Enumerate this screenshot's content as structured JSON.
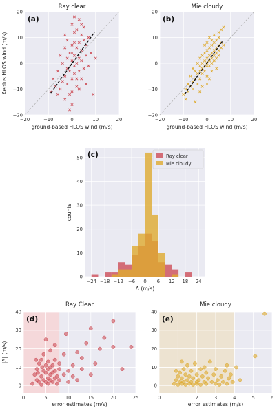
{
  "colors": {
    "ray": "#cd4e57",
    "mie": "#deaa2e",
    "panel_bg": "#eaeaf2",
    "grid": "#ffffff",
    "shade_ray": "#f5d8da",
    "shade_mie": "#ede3d1"
  },
  "chart_data": [
    {
      "id": "a",
      "type": "scatter",
      "panel_label": "(a)",
      "title": "Ray clear",
      "xlabel": "ground-based HLOS wind (m/s)",
      "ylabel": "Aeolus HLOS wind (m/s)",
      "xlim": [
        -20,
        20
      ],
      "ylim": [
        -20,
        20
      ],
      "xticks": [
        "−20",
        "−10",
        "0",
        "10",
        "20"
      ],
      "yticks": [
        "20",
        "10",
        "0",
        "−10",
        "−20"
      ],
      "marker": "x",
      "color": "#cd4e57",
      "grid": true,
      "one_to_one_line": {
        "from": [
          -20,
          -20
        ],
        "to": [
          20,
          20
        ]
      },
      "fit_line": {
        "from": [
          -9,
          -11.5
        ],
        "to": [
          9.5,
          12
        ]
      },
      "points": [
        [
          -9,
          -11
        ],
        [
          -8,
          -6
        ],
        [
          -7,
          -9
        ],
        [
          -6,
          -3
        ],
        [
          -6,
          -12
        ],
        [
          -5,
          -10
        ],
        [
          -5,
          3
        ],
        [
          -4,
          -7
        ],
        [
          -4,
          0
        ],
        [
          -3,
          -5
        ],
        [
          -3,
          -14
        ],
        [
          -3,
          6
        ],
        [
          -2,
          -2
        ],
        [
          -2,
          -8
        ],
        [
          -2,
          9
        ],
        [
          -1,
          -3
        ],
        [
          -1,
          4
        ],
        [
          -1,
          -12
        ],
        [
          0,
          -6
        ],
        [
          0,
          1
        ],
        [
          0,
          7
        ],
        [
          0,
          -16
        ],
        [
          0,
          15
        ],
        [
          1,
          -4
        ],
        [
          1,
          3
        ],
        [
          1,
          12
        ],
        [
          1,
          -1
        ],
        [
          2,
          -9
        ],
        [
          2,
          6
        ],
        [
          2,
          13
        ],
        [
          2,
          0
        ],
        [
          3,
          2
        ],
        [
          3,
          -3
        ],
        [
          3,
          8
        ],
        [
          3,
          17
        ],
        [
          4,
          5
        ],
        [
          4,
          -6
        ],
        [
          4,
          11
        ],
        [
          4,
          1
        ],
        [
          5,
          9
        ],
        [
          5,
          -2
        ],
        [
          5,
          14
        ],
        [
          6,
          3
        ],
        [
          6,
          -8
        ],
        [
          6,
          7
        ],
        [
          7,
          10
        ],
        [
          7,
          -1
        ],
        [
          8,
          4
        ],
        [
          9,
          -12
        ],
        [
          10,
          2
        ],
        [
          -1,
          -18
        ],
        [
          1,
          18
        ],
        [
          0,
          -11
        ],
        [
          2,
          -6
        ],
        [
          -2,
          2
        ],
        [
          3,
          -10
        ],
        [
          4,
          15
        ],
        [
          1,
          8
        ],
        [
          -3,
          11
        ],
        [
          0,
          4
        ]
      ]
    },
    {
      "id": "b",
      "type": "scatter",
      "panel_label": "(b)",
      "title": "Mie cloudy",
      "xlabel": "ground-based HLOS wind (m/s)",
      "xlim": [
        -20,
        20
      ],
      "ylim": [
        -20,
        20
      ],
      "xticks": [
        "−20",
        "−10",
        "0",
        "10",
        "20"
      ],
      "yticks": [
        "20",
        "10",
        "0",
        "−10",
        "−20"
      ],
      "marker": "x",
      "color": "#deaa2e",
      "grid": true,
      "one_to_one_line": {
        "from": [
          -20,
          -20
        ],
        "to": [
          20,
          20
        ]
      },
      "fit_line": {
        "from": [
          -9.5,
          -12
        ],
        "to": [
          6.5,
          8.5
        ]
      },
      "points": [
        [
          -10,
          -12
        ],
        [
          -9,
          -10
        ],
        [
          -9,
          -14
        ],
        [
          -8,
          -8
        ],
        [
          -8,
          -11
        ],
        [
          -7,
          -9
        ],
        [
          -7,
          -5
        ],
        [
          -6,
          -7
        ],
        [
          -6,
          -2
        ],
        [
          -6,
          -10
        ],
        [
          -5,
          -6
        ],
        [
          -5,
          -3
        ],
        [
          -5,
          -15
        ],
        [
          -4,
          -4
        ],
        [
          -4,
          0
        ],
        [
          -4,
          -8
        ],
        [
          -3,
          -3
        ],
        [
          -3,
          -1
        ],
        [
          -3,
          -6
        ],
        [
          -3,
          2
        ],
        [
          -2,
          -2
        ],
        [
          -2,
          0
        ],
        [
          -2,
          -4
        ],
        [
          -2,
          3
        ],
        [
          -1,
          -1
        ],
        [
          -1,
          1
        ],
        [
          -1,
          -3
        ],
        [
          -1,
          4
        ],
        [
          0,
          0
        ],
        [
          0,
          2
        ],
        [
          0,
          -1
        ],
        [
          0,
          5
        ],
        [
          0,
          -5
        ],
        [
          1,
          1
        ],
        [
          1,
          3
        ],
        [
          1,
          -1
        ],
        [
          1,
          6
        ],
        [
          2,
          2
        ],
        [
          2,
          4
        ],
        [
          2,
          0
        ],
        [
          2,
          7
        ],
        [
          3,
          3
        ],
        [
          3,
          5
        ],
        [
          3,
          1
        ],
        [
          3,
          8
        ],
        [
          4,
          4
        ],
        [
          4,
          6
        ],
        [
          4,
          2
        ],
        [
          4,
          9
        ],
        [
          5,
          5
        ],
        [
          5,
          7
        ],
        [
          5,
          3
        ],
        [
          5,
          10
        ],
        [
          6,
          6
        ],
        [
          6,
          8
        ],
        [
          6,
          13
        ],
        [
          7,
          7
        ],
        [
          7,
          14
        ],
        [
          0,
          -8
        ],
        [
          2,
          -3
        ],
        [
          -1,
          7
        ],
        [
          1,
          10
        ],
        [
          3,
          11
        ],
        [
          -2,
          -9
        ],
        [
          4,
          -2
        ],
        [
          -3,
          -11
        ],
        [
          2,
          9
        ],
        [
          5,
          12
        ],
        [
          0,
          8
        ],
        [
          1,
          -6
        ]
      ]
    },
    {
      "id": "c",
      "type": "bar",
      "subtype": "histogram",
      "panel_label": "(c)",
      "xlabel": "Δ (m/s)",
      "ylabel": "counts",
      "xlim": [
        -27,
        27
      ],
      "ylim": [
        0,
        54
      ],
      "xticks": [
        "−24",
        "−18",
        "−12",
        "−6",
        "0",
        "6",
        "12",
        "18",
        "24"
      ],
      "yticks": [
        "0",
        "10",
        "20",
        "30",
        "40",
        "50"
      ],
      "bin_edges": [
        -24,
        -21,
        -18,
        -15,
        -12,
        -9,
        -6,
        -3,
        0,
        3,
        6,
        9,
        12,
        15,
        18,
        21,
        24
      ],
      "legend_position": "top-right",
      "series": [
        {
          "name": "Ray clear",
          "color": "#cd4e57",
          "values": [
            1,
            0,
            2,
            2,
            6,
            5,
            9,
            13,
            18,
            15,
            6,
            5,
            3,
            0,
            2,
            0
          ]
        },
        {
          "name": "Mie cloudy",
          "color": "#deaa2e",
          "values": [
            0,
            0,
            0,
            1,
            3,
            3,
            13,
            18,
            52,
            26,
            10,
            0,
            1,
            0,
            0,
            0
          ]
        }
      ]
    },
    {
      "id": "d",
      "type": "scatter",
      "panel_label": "(d)",
      "title": "Ray Clear",
      "xlabel": "error estimates (m/s)",
      "ylabel": "|Δ| (m/s)",
      "xlim": [
        0,
        25
      ],
      "ylim": [
        -4,
        40
      ],
      "shade_x": [
        0,
        8
      ],
      "xticks": [
        "0",
        "5",
        "10",
        "15",
        "20",
        "25"
      ],
      "yticks": [
        "40",
        "30",
        "20",
        "10",
        "0"
      ],
      "marker": "o",
      "color": "#cd4e57",
      "grid": true,
      "points": [
        [
          2,
          1
        ],
        [
          2.5,
          6
        ],
        [
          3,
          3
        ],
        [
          3,
          9
        ],
        [
          3.5,
          12
        ],
        [
          3.5,
          2
        ],
        [
          4,
          5
        ],
        [
          4,
          14
        ],
        [
          4,
          0.5
        ],
        [
          4.5,
          8
        ],
        [
          4.5,
          3
        ],
        [
          4.5,
          17
        ],
        [
          5,
          2
        ],
        [
          5,
          7
        ],
        [
          5,
          11
        ],
        [
          5,
          25
        ],
        [
          5.5,
          1
        ],
        [
          5.5,
          4
        ],
        [
          5.5,
          9
        ],
        [
          5.5,
          13
        ],
        [
          6,
          3
        ],
        [
          6,
          6
        ],
        [
          6,
          10
        ],
        [
          6,
          19
        ],
        [
          6.5,
          2
        ],
        [
          6.5,
          7
        ],
        [
          6.5,
          11
        ],
        [
          7,
          4
        ],
        [
          7,
          8
        ],
        [
          7,
          14
        ],
        [
          7,
          22
        ],
        [
          7.5,
          1
        ],
        [
          7.5,
          5
        ],
        [
          8,
          9
        ],
        [
          8,
          3
        ],
        [
          8,
          12
        ],
        [
          9,
          6
        ],
        [
          9,
          17
        ],
        [
          9.5,
          28
        ],
        [
          10,
          2
        ],
        [
          10,
          8
        ],
        [
          11,
          11
        ],
        [
          11,
          5
        ],
        [
          12,
          18
        ],
        [
          12,
          3
        ],
        [
          13,
          9
        ],
        [
          13,
          15
        ],
        [
          14,
          23
        ],
        [
          15,
          6
        ],
        [
          15,
          31
        ],
        [
          16,
          12
        ],
        [
          17,
          20
        ],
        [
          18,
          26
        ],
        [
          20,
          35
        ],
        [
          20,
          21
        ],
        [
          22,
          9
        ],
        [
          24,
          21
        ],
        [
          2.8,
          14
        ],
        [
          3.2,
          7
        ],
        [
          4.2,
          10
        ]
      ]
    },
    {
      "id": "e",
      "type": "scatter",
      "panel_label": "(e)",
      "title": "Mie cloudy",
      "xlabel": "error estimates (m/s)",
      "xlim": [
        0,
        6
      ],
      "ylim": [
        -4,
        40
      ],
      "shade_x": [
        0,
        4
      ],
      "xticks": [
        "0",
        "1",
        "2",
        "3",
        "4",
        "5",
        "6"
      ],
      "yticks": [
        "40",
        "30",
        "20",
        "10",
        "0"
      ],
      "marker": "o",
      "color": "#deaa2e",
      "grid": true,
      "points": [
        [
          0.8,
          1
        ],
        [
          0.9,
          3
        ],
        [
          1,
          0.5
        ],
        [
          1,
          5
        ],
        [
          1.1,
          2
        ],
        [
          1.1,
          7
        ],
        [
          1.2,
          1
        ],
        [
          1.2,
          4
        ],
        [
          1.3,
          9
        ],
        [
          1.3,
          2
        ],
        [
          1.4,
          0.5
        ],
        [
          1.4,
          6
        ],
        [
          1.5,
          3
        ],
        [
          1.5,
          11
        ],
        [
          1.6,
          1
        ],
        [
          1.6,
          5
        ],
        [
          1.7,
          2
        ],
        [
          1.7,
          8
        ],
        [
          1.8,
          0.5
        ],
        [
          1.8,
          4
        ],
        [
          1.9,
          12
        ],
        [
          2,
          2
        ],
        [
          2,
          6
        ],
        [
          2,
          1
        ],
        [
          2.1,
          3
        ],
        [
          2.2,
          9
        ],
        [
          2.2,
          0.5
        ],
        [
          2.3,
          5
        ],
        [
          2.4,
          2
        ],
        [
          2.5,
          7
        ],
        [
          2.5,
          1
        ],
        [
          2.6,
          4
        ],
        [
          2.7,
          13
        ],
        [
          2.8,
          2
        ],
        [
          2.9,
          6
        ],
        [
          3,
          1
        ],
        [
          3,
          9
        ],
        [
          3.1,
          3
        ],
        [
          3.2,
          0.5
        ],
        [
          3.3,
          5
        ],
        [
          3.4,
          2
        ],
        [
          3.5,
          8
        ],
        [
          3.6,
          1
        ],
        [
          3.7,
          4
        ],
        [
          3.8,
          6
        ],
        [
          3.9,
          2
        ],
        [
          4.1,
          10
        ],
        [
          4.3,
          3
        ],
        [
          5.1,
          16
        ],
        [
          5.6,
          39
        ],
        [
          1.2,
          13
        ],
        [
          2.4,
          10
        ],
        [
          0.9,
          8
        ],
        [
          3.6,
          11
        ]
      ]
    }
  ]
}
